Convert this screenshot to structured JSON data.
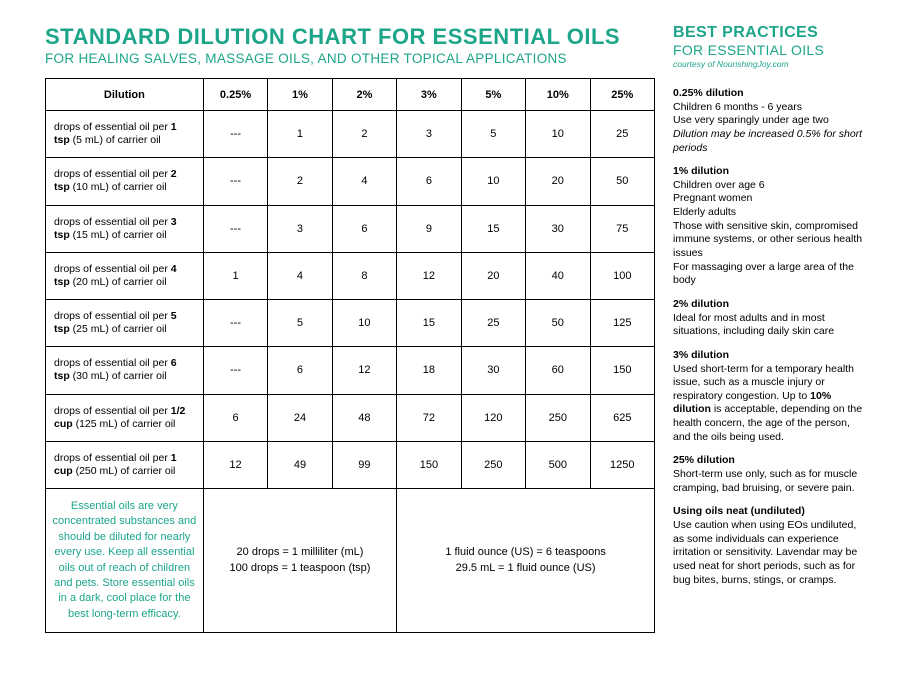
{
  "header": {
    "main_title": "STANDARD DILUTION CHART FOR ESSENTIAL OILS",
    "subtitle": "FOR HEALING SALVES, MASSAGE OILS, AND OTHER TOPICAL APPLICATIONS"
  },
  "right_header": {
    "line1": "BEST PRACTICES",
    "line2": "FOR ESSENTIAL OILS",
    "courtesy": "courtesy of NourishingJoy.com"
  },
  "table": {
    "columns": [
      "Dilution",
      "0.25%",
      "1%",
      "2%",
      "3%",
      "5%",
      "10%",
      "25%"
    ],
    "rows": [
      {
        "label_pre": "drops of essential oil per ",
        "label_bold": "1 tsp",
        "label_post": " (5 mL) of carrier oil",
        "vals": [
          "---",
          "1",
          "2",
          "3",
          "5",
          "10",
          "25"
        ]
      },
      {
        "label_pre": "drops of essential oil per ",
        "label_bold": "2 tsp",
        "label_post": " (10 mL) of carrier oil",
        "vals": [
          "---",
          "2",
          "4",
          "6",
          "10",
          "20",
          "50"
        ]
      },
      {
        "label_pre": "drops of essential oil per ",
        "label_bold": "3 tsp",
        "label_post": " (15 mL) of carrier oil",
        "vals": [
          "---",
          "3",
          "6",
          "9",
          "15",
          "30",
          "75"
        ]
      },
      {
        "label_pre": "drops of essential oil per ",
        "label_bold": "4 tsp",
        "label_post": " (20 mL) of carrier oil",
        "vals": [
          "1",
          "4",
          "8",
          "12",
          "20",
          "40",
          "100"
        ]
      },
      {
        "label_pre": "drops of essential oil per ",
        "label_bold": "5 tsp",
        "label_post": " (25 mL) of carrier oil",
        "vals": [
          "---",
          "5",
          "10",
          "15",
          "25",
          "50",
          "125"
        ]
      },
      {
        "label_pre": "drops of essential oil per ",
        "label_bold": "6 tsp",
        "label_post": " (30 mL) of carrier oil",
        "vals": [
          "---",
          "6",
          "12",
          "18",
          "30",
          "60",
          "150"
        ]
      },
      {
        "label_pre": "drops of essential oil per ",
        "label_bold": "1/2 cup",
        "label_post": " (125 mL) of carrier oil",
        "vals": [
          "6",
          "24",
          "48",
          "72",
          "120",
          "250",
          "625"
        ]
      },
      {
        "label_pre": "drops of essential oil per ",
        "label_bold": "1 cup",
        "label_post": " (250 mL) of carrier oil",
        "vals": [
          "12",
          "49",
          "99",
          "150",
          "250",
          "500",
          "1250"
        ]
      }
    ],
    "footnote": "Essential oils are very concentrated substances and should be diluted for nearly every use. Keep all essential oils out of reach of children and pets. Store essential oils in a dark, cool place for the best long-term efficacy.",
    "footer_left_l1": "20 drops = 1 milliliter (mL)",
    "footer_left_l2": "100 drops = 1 teaspoon (tsp)",
    "footer_right_l1": "1 fluid ounce (US) = 6 teaspoons",
    "footer_right_l2": "29.5 mL = 1 fluid ounce (US)"
  },
  "sidebar": {
    "blocks": [
      {
        "heading": "0.25% dilution",
        "lines": [
          {
            "text": "Children 6 months - 6 years"
          },
          {
            "text": "Use very sparingly under age two"
          },
          {
            "text": "Dilution may be increased 0.5% for short periods",
            "italic": true
          }
        ]
      },
      {
        "heading": "1% dilution",
        "lines": [
          {
            "text": "Children over age 6"
          },
          {
            "text": "Pregnant women"
          },
          {
            "text": "Elderly adults"
          },
          {
            "text": "Those with sensitive skin, compromised immune systems, or other serious health issues"
          },
          {
            "text": "For massaging over a large area of the body"
          }
        ]
      },
      {
        "heading": "2% dilution",
        "lines": [
          {
            "text": "Ideal for most adults and in most situations, including daily skin care"
          }
        ]
      },
      {
        "heading": "3% dilution",
        "lines": [
          {
            "text_pre": "Used short-term for a temporary health issue, such as a muscle injury or respiratory congestion. Up to ",
            "bold": "10% dilution",
            "text_post": " is acceptable, depending on the health concern, the age of the person, and the oils being used."
          }
        ]
      },
      {
        "heading": "25% dilution",
        "lines": [
          {
            "text": "Short-term use only, such as for muscle cramping, bad bruising, or severe pain."
          }
        ]
      },
      {
        "heading": "Using oils neat (undiluted)",
        "lines": [
          {
            "text": "Use caution when using EOs undiluted, as some individuals can experience irritation or sensitivity. Lavendar may be used neat for short periods, such as for bug bites, burns, stings, or cramps."
          }
        ]
      }
    ]
  },
  "colors": {
    "accent": "#1da58a",
    "text": "#000000",
    "border": "#000000",
    "background": "#ffffff"
  }
}
